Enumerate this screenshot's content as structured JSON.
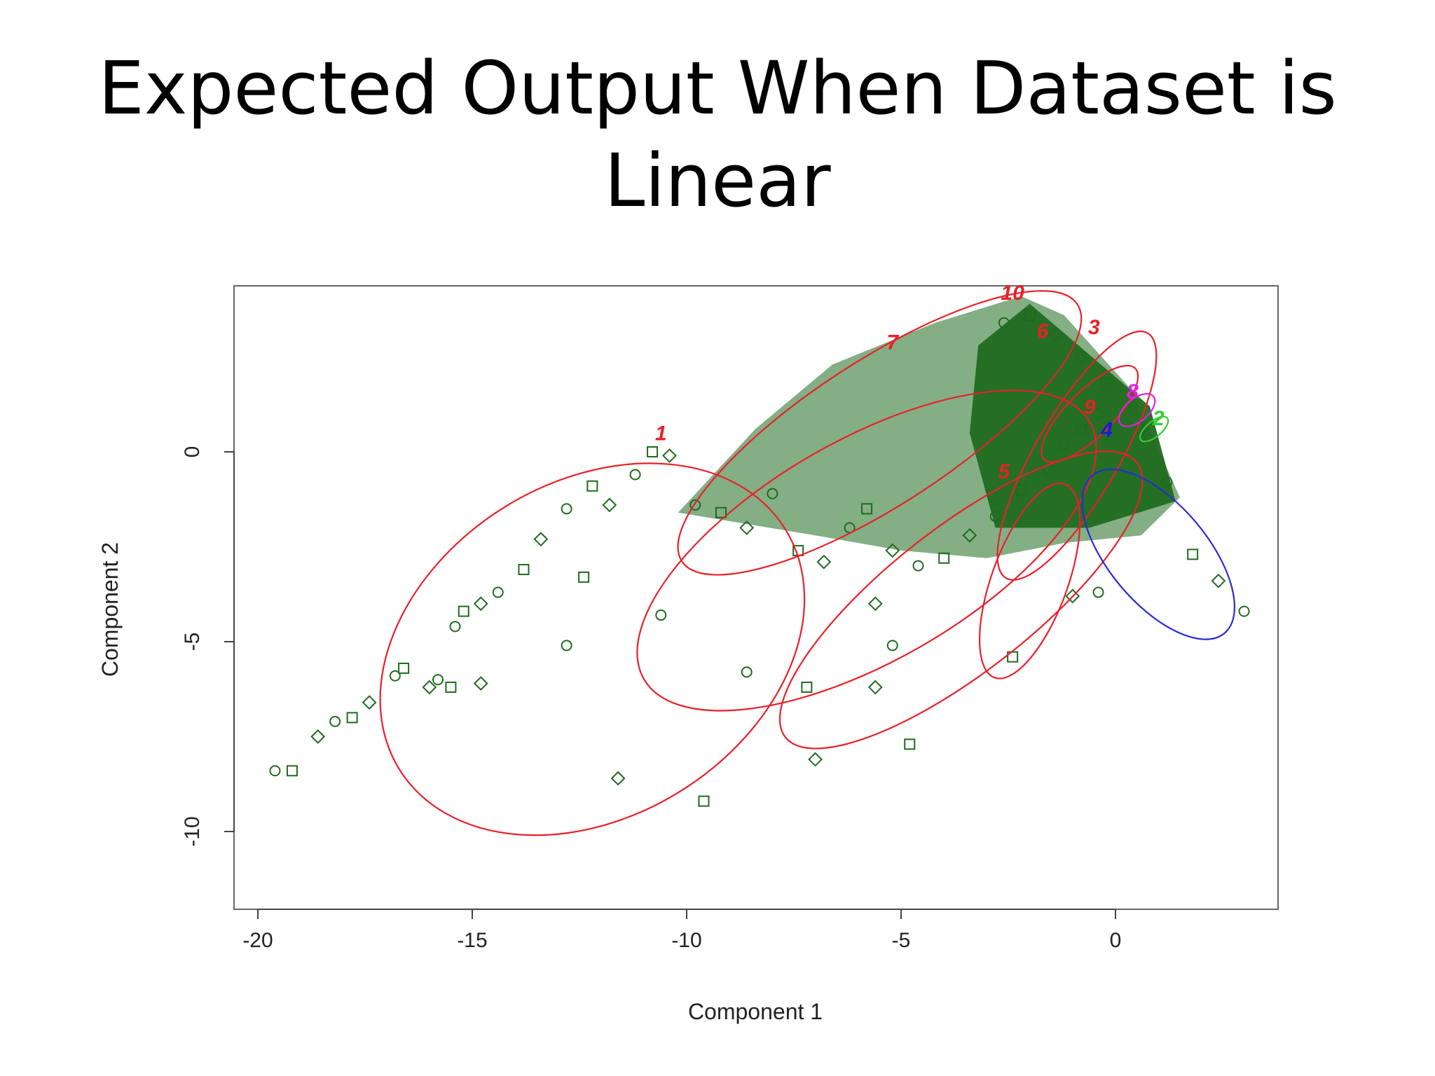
{
  "slide": {
    "title_line1": "Expected Output When Dataset is",
    "title_line2": "Linear"
  },
  "colors": {
    "points": "#1f6b1f",
    "cluster_red": "#e8202a",
    "cluster_blue": "#2a2ad8",
    "label_magenta": "#e020e0",
    "label_green": "#33cc33",
    "label_blue": "#1a1ae0",
    "frame": "#555555"
  },
  "chart_data": {
    "type": "scatter",
    "title": "",
    "xlabel": "Component 1",
    "ylabel": "Component 2",
    "xlim": [
      -20.5,
      3.8
    ],
    "ylim": [
      -12.1,
      4.4
    ],
    "xticks": [
      -20,
      -15,
      -10,
      -5,
      0
    ],
    "xtick_labels": [
      "-20",
      "-15",
      "-10",
      "-5",
      "0"
    ],
    "yticks": [
      -10,
      -5,
      0
    ],
    "ytick_labels": [
      "-10",
      "-5",
      "0"
    ],
    "grid": false,
    "clusters": [
      {
        "label": "1",
        "center": [
          -12.2,
          -5.2
        ],
        "rx": 5.3,
        "ry": 4.4,
        "rotation": 32,
        "color": "red",
        "label_pos": [
          -10.6,
          0.3
        ]
      },
      {
        "label": "7",
        "center": [
          -5.8,
          -2.6
        ],
        "rx": 6.0,
        "ry": 2.9,
        "rotation": 30,
        "color": "red",
        "label_pos": [
          -5.2,
          2.7
        ]
      },
      {
        "label": "6",
        "center": [
          -3.6,
          -3.9
        ],
        "rx": 5.2,
        "ry": 1.9,
        "rotation": 38,
        "color": "red",
        "label_pos": [
          -1.7,
          3.0
        ]
      },
      {
        "label": "10",
        "center": [
          -5.5,
          0.5
        ],
        "rx": 5.5,
        "ry": 1.9,
        "rotation": 33,
        "color": "red",
        "label_pos": [
          -2.4,
          4.0
        ]
      },
      {
        "label": "5",
        "center": [
          -2.0,
          -3.4
        ],
        "rx": 2.4,
        "ry": 1.0,
        "rotation": 70,
        "color": "red",
        "label_pos": [
          -2.6,
          -0.7
        ]
      },
      {
        "label": "3",
        "center": [
          -0.9,
          -0.1
        ],
        "rx": 3.3,
        "ry": 1.1,
        "rotation": 60,
        "color": "red",
        "label_pos": [
          -0.5,
          3.1
        ]
      },
      {
        "label": "9",
        "center": [
          -0.6,
          1.0
        ],
        "rx": 1.5,
        "ry": 0.6,
        "rotation": 45,
        "color": "red",
        "label_pos": [
          -0.6,
          1.0
        ]
      },
      {
        "label": "8",
        "center": [
          0.5,
          1.1
        ],
        "rx": 0.5,
        "ry": 0.3,
        "rotation": 40,
        "color": "magenta",
        "label_pos": [
          0.4,
          1.4
        ]
      },
      {
        "label": "2",
        "center": [
          0.9,
          0.6
        ],
        "rx": 0.4,
        "ry": 0.2,
        "rotation": 40,
        "color": "green",
        "label_pos": [
          1.0,
          0.7
        ]
      },
      {
        "label": "4",
        "center": [
          1.0,
          -2.7
        ],
        "rx": 2.4,
        "ry": 1.3,
        "rotation": -50,
        "color": "blue",
        "label_pos": [
          -0.2,
          0.4
        ]
      }
    ],
    "sample_points": [
      [
        -19.6,
        -8.4
      ],
      [
        -19.2,
        -8.4
      ],
      [
        -18.6,
        -7.5
      ],
      [
        -18.2,
        -7.1
      ],
      [
        -17.8,
        -7.0
      ],
      [
        -17.4,
        -6.6
      ],
      [
        -16.8,
        -5.9
      ],
      [
        -16.6,
        -5.7
      ],
      [
        -16.0,
        -6.2
      ],
      [
        -15.8,
        -6.0
      ],
      [
        -15.5,
        -6.2
      ],
      [
        -14.8,
        -6.1
      ],
      [
        -15.4,
        -4.6
      ],
      [
        -15.2,
        -4.2
      ],
      [
        -14.8,
        -4.0
      ],
      [
        -14.4,
        -3.7
      ],
      [
        -13.8,
        -3.1
      ],
      [
        -13.4,
        -2.3
      ],
      [
        -12.8,
        -1.5
      ],
      [
        -12.2,
        -0.9
      ],
      [
        -11.8,
        -1.4
      ],
      [
        -11.2,
        -0.6
      ],
      [
        -10.8,
        0.0
      ],
      [
        -10.4,
        -0.1
      ],
      [
        -12.8,
        -5.1
      ],
      [
        -12.4,
        -3.3
      ],
      [
        -11.6,
        -8.6
      ],
      [
        -10.6,
        -4.3
      ],
      [
        -9.6,
        -9.2
      ],
      [
        -7.0,
        -8.1
      ],
      [
        -8.6,
        -5.8
      ],
      [
        -7.2,
        -6.2
      ],
      [
        -5.6,
        -6.2
      ],
      [
        -5.2,
        -5.1
      ],
      [
        -4.8,
        -7.7
      ],
      [
        -5.6,
        -4.0
      ],
      [
        -9.8,
        -1.4
      ],
      [
        -9.2,
        -1.6
      ],
      [
        -8.6,
        -2.0
      ],
      [
        -8.0,
        -1.1
      ],
      [
        -7.4,
        -2.6
      ],
      [
        -6.8,
        -2.9
      ],
      [
        -6.2,
        -2.0
      ],
      [
        -5.8,
        -1.5
      ],
      [
        -5.2,
        -2.6
      ],
      [
        -4.6,
        -3.0
      ],
      [
        -4.0,
        -2.8
      ],
      [
        -3.4,
        -2.2
      ],
      [
        -2.8,
        -1.7
      ],
      [
        -2.2,
        -1.0
      ],
      [
        -1.6,
        -0.4
      ],
      [
        -1.2,
        0.2
      ],
      [
        -0.8,
        0.6
      ],
      [
        -0.4,
        1.0
      ],
      [
        -2.6,
        3.4
      ],
      [
        -2.0,
        3.6
      ],
      [
        -1.4,
        3.1
      ],
      [
        -0.8,
        2.5
      ],
      [
        -0.2,
        1.8
      ],
      [
        0.6,
        0.6
      ],
      [
        1.2,
        -0.8
      ],
      [
        1.8,
        -2.7
      ],
      [
        2.4,
        -3.4
      ],
      [
        3.0,
        -4.2
      ],
      [
        -2.4,
        -5.4
      ],
      [
        -1.0,
        -3.8
      ],
      [
        -0.4,
        -3.7
      ]
    ]
  }
}
